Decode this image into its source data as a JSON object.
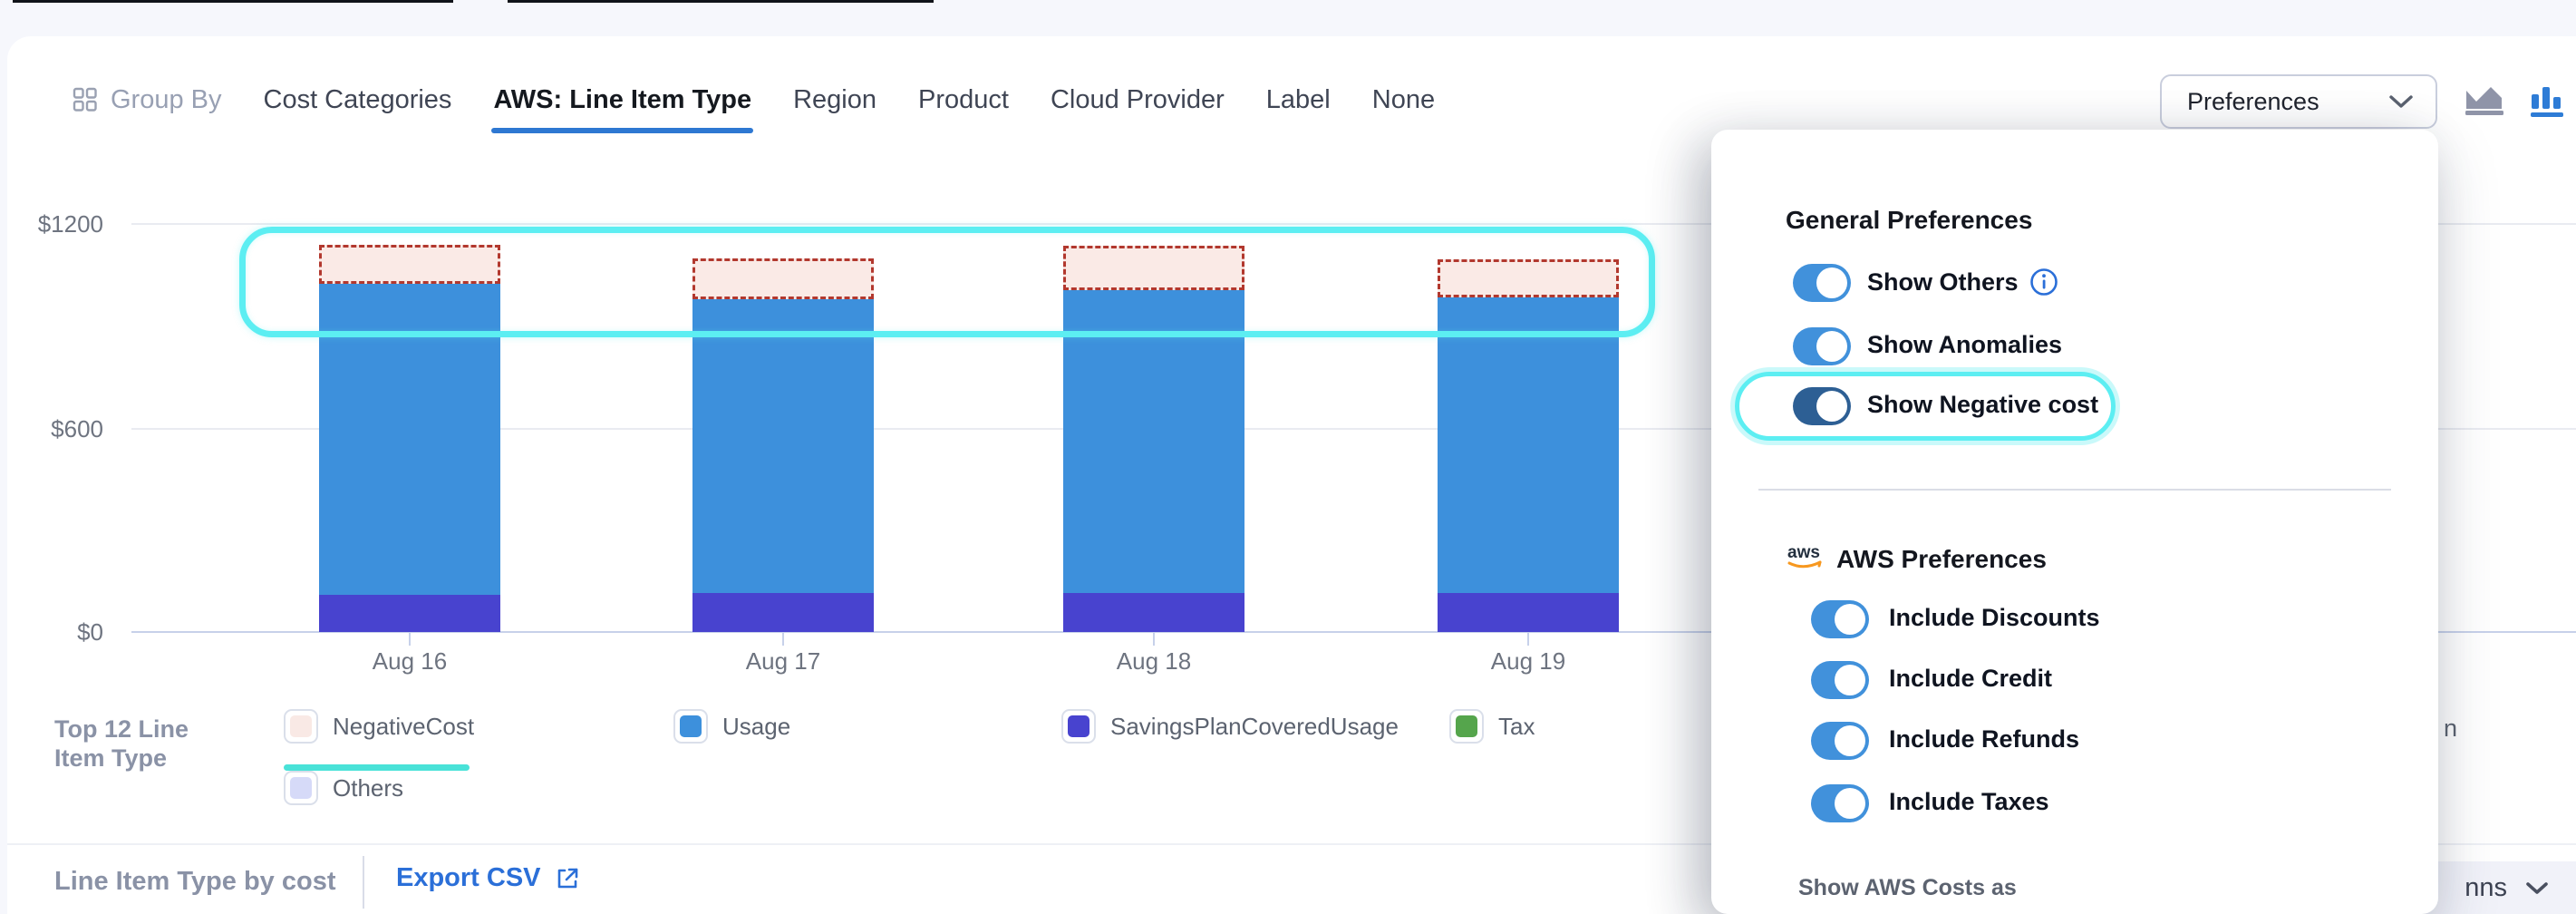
{
  "header": {
    "group_by": {
      "label": "Group By"
    },
    "tabs": [
      {
        "label": "Cost Categories",
        "active": false
      },
      {
        "label": "AWS: Line Item Type",
        "active": true
      },
      {
        "label": "Region",
        "active": false
      },
      {
        "label": "Product",
        "active": false
      },
      {
        "label": "Cloud Provider",
        "active": false
      },
      {
        "label": "Label",
        "active": false
      },
      {
        "label": "None",
        "active": false
      }
    ],
    "active_tab_underline_color": "#2e78d2",
    "preferences_button": {
      "label": "Preferences"
    },
    "view_toggle": {
      "icons": [
        "area-chart",
        "bar-chart"
      ],
      "active": "bar-chart",
      "active_color": "#2e7cd6",
      "inactive_color": "#8f94a8"
    }
  },
  "chart_data": {
    "type": "bar",
    "stacked": true,
    "categories": [
      "Aug 16",
      "Aug 17",
      "Aug 18",
      "Aug 19"
    ],
    "series": [
      {
        "name": "SavingsPlanCoveredUsage",
        "color": "#4843cf",
        "values": [
          110,
          115,
          115,
          115
        ]
      },
      {
        "name": "Usage",
        "color": "#3d90dc",
        "values": [
          915,
          865,
          890,
          870
        ]
      },
      {
        "name": "NegativeCost",
        "color": "#b2382e",
        "fill": "#faeae6",
        "style": "dashed-outline",
        "values": [
          115,
          120,
          130,
          110
        ]
      },
      {
        "name": "Tax",
        "color": "#55a54c",
        "values": [
          0,
          0,
          0,
          0
        ]
      }
    ],
    "ylim": [
      0,
      1200
    ],
    "yticks": [
      "$0",
      "$600",
      "$1200"
    ],
    "grid": true,
    "legend_position": "bottom",
    "annotation": {
      "type": "highlight-box",
      "color": "#5ceef2",
      "covers": "negative-cost-region-of-all-bars"
    }
  },
  "legend": {
    "title": "Top 12 Line Item Type",
    "items": [
      {
        "label": "NegativeCost",
        "swatch": "#f9e9e5",
        "underlined": true
      },
      {
        "label": "Usage",
        "swatch": "#3d90dc",
        "underlined": false
      },
      {
        "label": "SavingsPlanCoveredUsage",
        "swatch": "#4843cf",
        "underlined": false
      },
      {
        "label": "Tax",
        "swatch": "#55a54c",
        "underlined": false
      },
      {
        "label": "Others",
        "swatch": "#d6daf8",
        "underlined": false
      }
    ],
    "underline_color": "#49e2d8",
    "clipped_text": "n"
  },
  "footer": {
    "section_title": "Line Item Type by cost",
    "export_button": "Export CSV",
    "columns_button_visible_text": "nns"
  },
  "preferences_panel": {
    "general": {
      "heading": "General Preferences",
      "toggles": [
        {
          "label": "Show Others",
          "state": "on",
          "has_info_icon": true
        },
        {
          "label": "Show Anomalies",
          "state": "on"
        },
        {
          "label": "Show Negative cost",
          "state": "on",
          "highlighted": true
        }
      ]
    },
    "aws": {
      "heading": "AWS Preferences",
      "toggles": [
        {
          "label": "Include Discounts",
          "state": "on"
        },
        {
          "label": "Include Credit",
          "state": "on"
        },
        {
          "label": "Include Refunds",
          "state": "on"
        },
        {
          "label": "Include Taxes",
          "state": "on"
        }
      ],
      "footer_label": "Show AWS Costs as"
    },
    "toggle_on_color": "#4191db",
    "negative_toggle_color": "#2d5f94",
    "highlight_color": "#5ceef2",
    "info_icon_color": "#2b6fd8"
  }
}
